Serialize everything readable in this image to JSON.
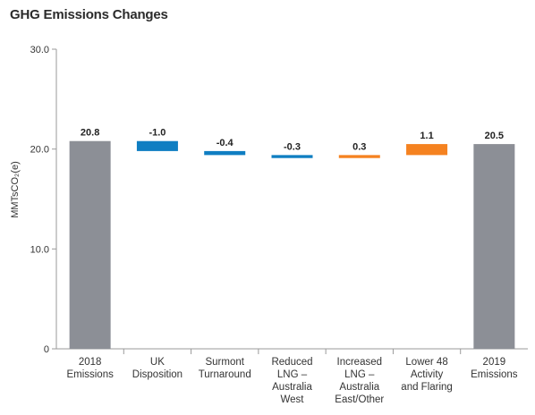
{
  "chart_data": {
    "type": "bar",
    "subtype": "waterfall",
    "title": "GHG Emissions Changes",
    "ylabel": "MMTsCO₂(e)",
    "xlabel": "",
    "ylim": [
      0,
      30
    ],
    "yticks": [
      "0",
      "10.0",
      "20.0",
      "30.0"
    ],
    "grid": false,
    "colors": {
      "total": "#8c8f96",
      "decrease": "#0f7ec2",
      "increase": "#f58220"
    },
    "bars": [
      {
        "category": [
          "2018",
          "Emissions"
        ],
        "value": 20.8,
        "label": "20.8",
        "kind": "total"
      },
      {
        "category": [
          "UK",
          "Disposition"
        ],
        "value": -1.0,
        "label": "-1.0",
        "kind": "decrease"
      },
      {
        "category": [
          "Surmont",
          "Turnaround"
        ],
        "value": -0.4,
        "label": "-0.4",
        "kind": "decrease"
      },
      {
        "category": [
          "Reduced",
          "LNG –",
          "Australia",
          "West"
        ],
        "value": -0.3,
        "label": "-0.3",
        "kind": "decrease"
      },
      {
        "category": [
          "Increased",
          "LNG –",
          "Australia",
          "East/Other"
        ],
        "value": 0.3,
        "label": "0.3",
        "kind": "increase"
      },
      {
        "category": [
          "Lower 48",
          "Activity",
          "and Flaring"
        ],
        "value": 1.1,
        "label": "1.1",
        "kind": "increase"
      },
      {
        "category": [
          "2019",
          "Emissions"
        ],
        "value": 20.5,
        "label": "20.5",
        "kind": "total"
      }
    ]
  }
}
